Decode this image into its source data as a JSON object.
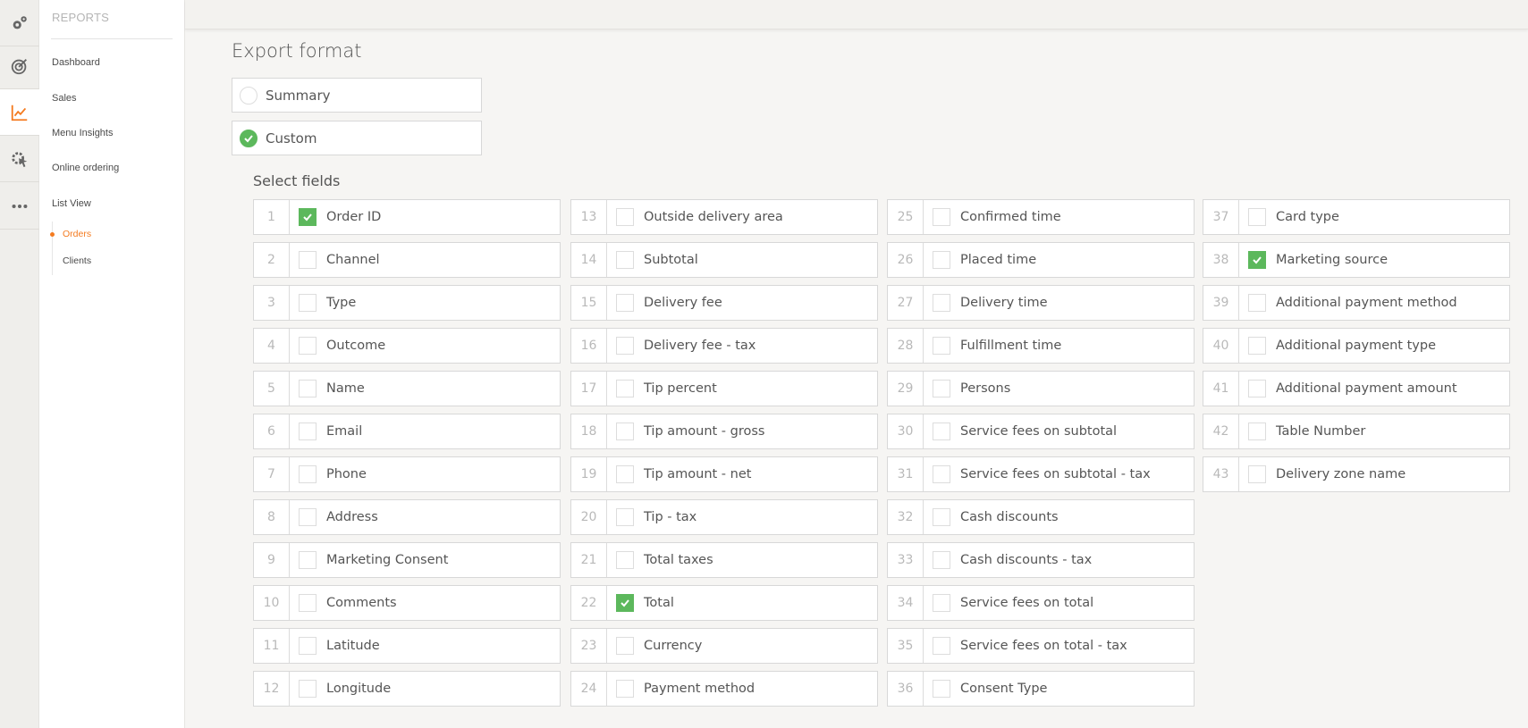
{
  "colors": {
    "accent": "#f47b20",
    "check": "#5cb85c"
  },
  "rail": [
    {
      "icon": "gears-icon",
      "active": false
    },
    {
      "icon": "target-icon",
      "active": false
    },
    {
      "icon": "chart-line-icon",
      "active": true
    },
    {
      "icon": "gear-cursor-icon",
      "active": false
    },
    {
      "icon": "more-dots-icon",
      "active": false
    }
  ],
  "submenu": {
    "title": "REPORTS",
    "items": [
      "Dashboard",
      "Sales",
      "Menu Insights",
      "Online ordering",
      "List View"
    ],
    "children": [
      {
        "label": "Orders",
        "active": true
      },
      {
        "label": "Clients",
        "active": false
      }
    ]
  },
  "export": {
    "title": "Export format",
    "options": [
      {
        "label": "Summary",
        "selected": false
      },
      {
        "label": "Custom",
        "selected": true
      }
    ],
    "select_fields_label": "Select fields",
    "fields": [
      {
        "n": "1",
        "label": "Order ID",
        "checked": true
      },
      {
        "n": "2",
        "label": "Channel",
        "checked": false
      },
      {
        "n": "3",
        "label": "Type",
        "checked": false
      },
      {
        "n": "4",
        "label": "Outcome",
        "checked": false
      },
      {
        "n": "5",
        "label": "Name",
        "checked": false
      },
      {
        "n": "6",
        "label": "Email",
        "checked": false
      },
      {
        "n": "7",
        "label": "Phone",
        "checked": false
      },
      {
        "n": "8",
        "label": "Address",
        "checked": false
      },
      {
        "n": "9",
        "label": "Marketing Consent",
        "checked": false
      },
      {
        "n": "10",
        "label": "Comments",
        "checked": false
      },
      {
        "n": "11",
        "label": "Latitude",
        "checked": false
      },
      {
        "n": "12",
        "label": "Longitude",
        "checked": false
      },
      {
        "n": "13",
        "label": "Outside delivery area",
        "checked": false
      },
      {
        "n": "14",
        "label": "Subtotal",
        "checked": false
      },
      {
        "n": "15",
        "label": "Delivery fee",
        "checked": false
      },
      {
        "n": "16",
        "label": "Delivery fee - tax",
        "checked": false
      },
      {
        "n": "17",
        "label": "Tip percent",
        "checked": false
      },
      {
        "n": "18",
        "label": "Tip amount - gross",
        "checked": false
      },
      {
        "n": "19",
        "label": "Tip amount - net",
        "checked": false
      },
      {
        "n": "20",
        "label": "Tip - tax",
        "checked": false
      },
      {
        "n": "21",
        "label": "Total taxes",
        "checked": false
      },
      {
        "n": "22",
        "label": "Total",
        "checked": true
      },
      {
        "n": "23",
        "label": "Currency",
        "checked": false
      },
      {
        "n": "24",
        "label": "Payment method",
        "checked": false
      },
      {
        "n": "25",
        "label": "Confirmed time",
        "checked": false
      },
      {
        "n": "26",
        "label": "Placed time",
        "checked": false
      },
      {
        "n": "27",
        "label": "Delivery time",
        "checked": false
      },
      {
        "n": "28",
        "label": "Fulfillment time",
        "checked": false
      },
      {
        "n": "29",
        "label": "Persons",
        "checked": false
      },
      {
        "n": "30",
        "label": "Service fees on subtotal",
        "checked": false
      },
      {
        "n": "31",
        "label": "Service fees on subtotal - tax",
        "checked": false
      },
      {
        "n": "32",
        "label": "Cash discounts",
        "checked": false
      },
      {
        "n": "33",
        "label": "Cash discounts - tax",
        "checked": false
      },
      {
        "n": "34",
        "label": "Service fees on total",
        "checked": false
      },
      {
        "n": "35",
        "label": "Service fees on total - tax",
        "checked": false
      },
      {
        "n": "36",
        "label": "Consent Type",
        "checked": false
      },
      {
        "n": "37",
        "label": "Card type",
        "checked": false
      },
      {
        "n": "38",
        "label": "Marketing source",
        "checked": true
      },
      {
        "n": "39",
        "label": "Additional payment method",
        "checked": false
      },
      {
        "n": "40",
        "label": "Additional payment type",
        "checked": false
      },
      {
        "n": "41",
        "label": "Additional payment amount",
        "checked": false
      },
      {
        "n": "42",
        "label": "Table Number",
        "checked": false
      },
      {
        "n": "43",
        "label": "Delivery zone name",
        "checked": false
      }
    ]
  }
}
